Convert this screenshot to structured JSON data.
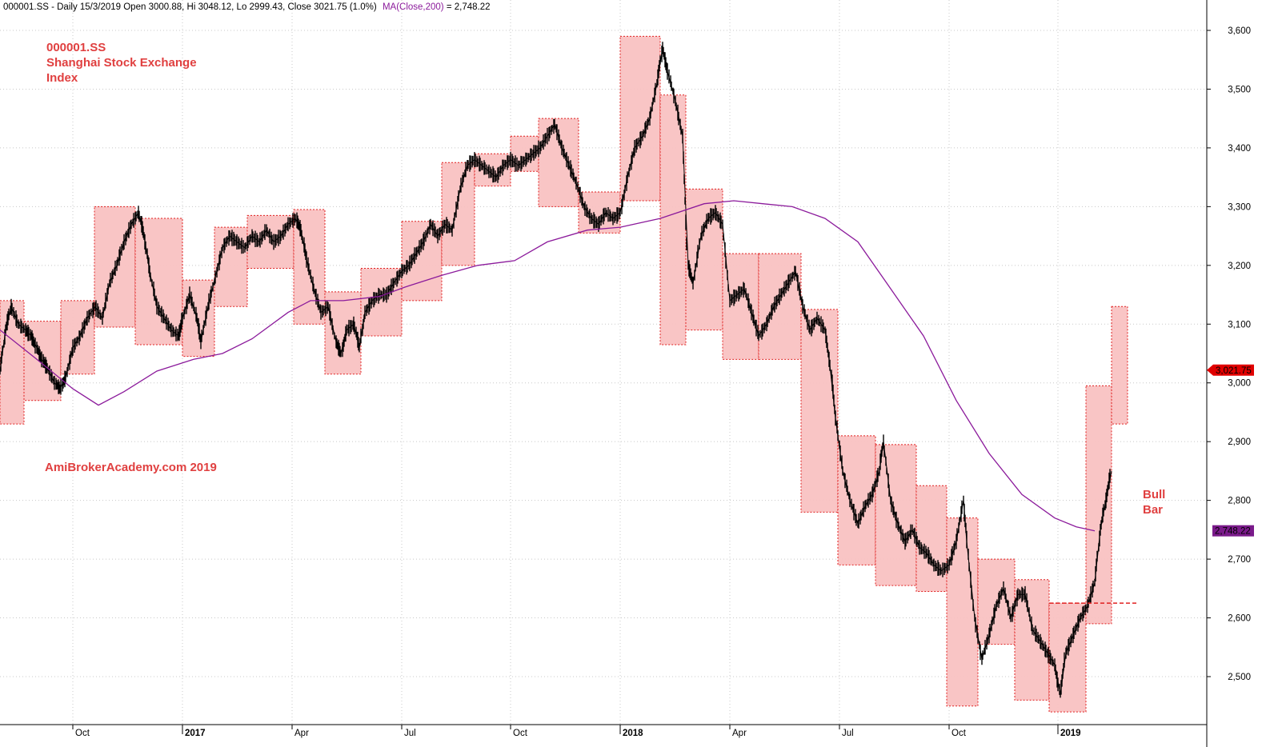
{
  "header": {
    "info": "000001.SS - Daily 15/3/2019 Open 3000.88, Hi 3048.12, Lo 2999.43, Close 3021.75 (1.0%)",
    "ma_label": "MA(Close,200)",
    "ma_value": " = 2,748.22"
  },
  "colors": {
    "box_fill": "#f9c2c2",
    "box_border": "#e02020",
    "price": "#000000",
    "ma": "#8b1a9b",
    "grid": "#c8c8c8",
    "annotation": "#e04040",
    "last_price_tag": "#e00000",
    "ma_tag": "#7a1a8a"
  },
  "annotations": {
    "title_line1": "000001.SS",
    "title_line2": "Shanghai Stock Exchange",
    "title_line3": "Index",
    "watermark": "AmiBrokerAcademy.com  2019",
    "bull_line1": "Bull",
    "bull_line2": "Bar"
  },
  "tags": {
    "last_price": "3,021.75",
    "ma": "2,748.22"
  },
  "chart_data": {
    "type": "line",
    "title": "000001.SS Shanghai Stock Exchange Index",
    "xlabel": "",
    "ylabel": "",
    "ylim": [
      2440,
      3630
    ],
    "xlim": [
      0,
      30.5
    ],
    "y_ticks": [
      2500,
      2600,
      2700,
      2800,
      2900,
      3000,
      3100,
      3200,
      3300,
      3400,
      3500,
      3600
    ],
    "y_tick_labels": [
      "2,500",
      "2,600",
      "2,700",
      "2,800",
      "2,900",
      "3,000",
      "3,100",
      "3,200",
      "3,300",
      "3,400",
      "3,500",
      "3,600"
    ],
    "x_ticks": [
      {
        "month": 2,
        "label": "Oct",
        "bold": false
      },
      {
        "month": 5,
        "label": "2017",
        "bold": true
      },
      {
        "month": 8,
        "label": "Apr",
        "bold": false
      },
      {
        "month": 11,
        "label": "Jul",
        "bold": false
      },
      {
        "month": 14,
        "label": "Oct",
        "bold": false
      },
      {
        "month": 17,
        "label": "2018",
        "bold": true
      },
      {
        "month": 20,
        "label": "Apr",
        "bold": false
      },
      {
        "month": 23,
        "label": "Jul",
        "bold": false
      },
      {
        "month": 26,
        "label": "Oct",
        "bold": false
      },
      {
        "month": 29,
        "label": "2019",
        "bold": true
      }
    ],
    "x_unit": "months since 2016-08-01",
    "grid": true,
    "series": [
      {
        "name": "000001.SS",
        "kind": "price",
        "points": [
          [
            0.0,
            3020
          ],
          [
            0.15,
            3090
          ],
          [
            0.3,
            3130
          ],
          [
            0.5,
            3100
          ],
          [
            0.7,
            3090
          ],
          [
            0.85,
            3080
          ],
          [
            1.0,
            3060
          ],
          [
            1.15,
            3040
          ],
          [
            1.3,
            3025
          ],
          [
            1.5,
            3000
          ],
          [
            1.65,
            2990
          ],
          [
            1.8,
            3010
          ],
          [
            2.0,
            3060
          ],
          [
            2.2,
            3080
          ],
          [
            2.4,
            3110
          ],
          [
            2.6,
            3130
          ],
          [
            2.8,
            3110
          ],
          [
            3.0,
            3170
          ],
          [
            3.2,
            3200
          ],
          [
            3.4,
            3240
          ],
          [
            3.6,
            3270
          ],
          [
            3.8,
            3290
          ],
          [
            3.95,
            3250
          ],
          [
            4.1,
            3190
          ],
          [
            4.3,
            3130
          ],
          [
            4.5,
            3110
          ],
          [
            4.7,
            3090
          ],
          [
            4.9,
            3080
          ],
          [
            5.0,
            3110
          ],
          [
            5.2,
            3150
          ],
          [
            5.4,
            3110
          ],
          [
            5.5,
            3070
          ],
          [
            5.7,
            3130
          ],
          [
            5.9,
            3180
          ],
          [
            6.1,
            3230
          ],
          [
            6.3,
            3250
          ],
          [
            6.5,
            3240
          ],
          [
            6.7,
            3230
          ],
          [
            6.9,
            3250
          ],
          [
            7.1,
            3240
          ],
          [
            7.3,
            3260
          ],
          [
            7.5,
            3240
          ],
          [
            7.7,
            3250
          ],
          [
            7.9,
            3270
          ],
          [
            8.1,
            3280
          ],
          [
            8.25,
            3260
          ],
          [
            8.4,
            3210
          ],
          [
            8.6,
            3160
          ],
          [
            8.8,
            3120
          ],
          [
            9.0,
            3130
          ],
          [
            9.2,
            3070
          ],
          [
            9.35,
            3050
          ],
          [
            9.5,
            3090
          ],
          [
            9.7,
            3100
          ],
          [
            9.85,
            3060
          ],
          [
            10.0,
            3120
          ],
          [
            10.2,
            3140
          ],
          [
            10.4,
            3150
          ],
          [
            10.6,
            3150
          ],
          [
            10.8,
            3170
          ],
          [
            11.0,
            3190
          ],
          [
            11.2,
            3200
          ],
          [
            11.4,
            3220
          ],
          [
            11.6,
            3240
          ],
          [
            11.8,
            3270
          ],
          [
            12.0,
            3250
          ],
          [
            12.2,
            3270
          ],
          [
            12.4,
            3260
          ],
          [
            12.6,
            3330
          ],
          [
            12.8,
            3370
          ],
          [
            13.0,
            3380
          ],
          [
            13.2,
            3370
          ],
          [
            13.4,
            3360
          ],
          [
            13.6,
            3350
          ],
          [
            13.8,
            3370
          ],
          [
            14.0,
            3380
          ],
          [
            14.2,
            3370
          ],
          [
            14.4,
            3380
          ],
          [
            14.6,
            3390
          ],
          [
            14.8,
            3400
          ],
          [
            15.0,
            3420
          ],
          [
            15.2,
            3440
          ],
          [
            15.4,
            3400
          ],
          [
            15.6,
            3370
          ],
          [
            15.8,
            3340
          ],
          [
            16.0,
            3300
          ],
          [
            16.2,
            3280
          ],
          [
            16.4,
            3270
          ],
          [
            16.6,
            3290
          ],
          [
            16.8,
            3280
          ],
          [
            17.0,
            3290
          ],
          [
            17.2,
            3350
          ],
          [
            17.4,
            3400
          ],
          [
            17.6,
            3420
          ],
          [
            17.8,
            3450
          ],
          [
            18.0,
            3510
          ],
          [
            18.15,
            3570
          ],
          [
            18.3,
            3530
          ],
          [
            18.5,
            3480
          ],
          [
            18.7,
            3420
          ],
          [
            18.85,
            3200
          ],
          [
            19.0,
            3170
          ],
          [
            19.2,
            3250
          ],
          [
            19.4,
            3280
          ],
          [
            19.6,
            3290
          ],
          [
            19.8,
            3270
          ],
          [
            20.0,
            3140
          ],
          [
            20.2,
            3150
          ],
          [
            20.4,
            3160
          ],
          [
            20.6,
            3120
          ],
          [
            20.8,
            3080
          ],
          [
            21.0,
            3100
          ],
          [
            21.2,
            3130
          ],
          [
            21.4,
            3150
          ],
          [
            21.6,
            3170
          ],
          [
            21.8,
            3190
          ],
          [
            22.0,
            3130
          ],
          [
            22.2,
            3090
          ],
          [
            22.4,
            3110
          ],
          [
            22.6,
            3090
          ],
          [
            22.75,
            3030
          ],
          [
            22.9,
            2940
          ],
          [
            23.1,
            2850
          ],
          [
            23.3,
            2800
          ],
          [
            23.5,
            2760
          ],
          [
            23.7,
            2790
          ],
          [
            23.9,
            2810
          ],
          [
            24.1,
            2850
          ],
          [
            24.2,
            2900
          ],
          [
            24.4,
            2800
          ],
          [
            24.6,
            2760
          ],
          [
            24.8,
            2730
          ],
          [
            25.0,
            2750
          ],
          [
            25.2,
            2720
          ],
          [
            25.4,
            2710
          ],
          [
            25.6,
            2690
          ],
          [
            25.8,
            2680
          ],
          [
            26.0,
            2690
          ],
          [
            26.2,
            2730
          ],
          [
            26.4,
            2800
          ],
          [
            26.5,
            2730
          ],
          [
            26.7,
            2600
          ],
          [
            26.9,
            2530
          ],
          [
            27.1,
            2570
          ],
          [
            27.3,
            2620
          ],
          [
            27.5,
            2650
          ],
          [
            27.7,
            2600
          ],
          [
            27.9,
            2640
          ],
          [
            28.1,
            2640
          ],
          [
            28.3,
            2580
          ],
          [
            28.5,
            2560
          ],
          [
            28.7,
            2540
          ],
          [
            28.9,
            2520
          ],
          [
            29.05,
            2470
          ],
          [
            29.2,
            2540
          ],
          [
            29.4,
            2570
          ],
          [
            29.6,
            2600
          ],
          [
            29.8,
            2620
          ],
          [
            30.0,
            2660
          ],
          [
            30.15,
            2750
          ],
          [
            30.3,
            2800
          ],
          [
            30.45,
            2850
          ]
        ]
      },
      {
        "name": "MA(Close,200)",
        "kind": "ma",
        "points": [
          [
            0.0,
            3090
          ],
          [
            1.0,
            3040
          ],
          [
            2.0,
            2990
          ],
          [
            2.7,
            2962
          ],
          [
            3.4,
            2985
          ],
          [
            4.3,
            3020
          ],
          [
            5.3,
            3040
          ],
          [
            6.1,
            3050
          ],
          [
            6.9,
            3075
          ],
          [
            7.9,
            3120
          ],
          [
            8.5,
            3140
          ],
          [
            9.4,
            3140
          ],
          [
            10.4,
            3147
          ],
          [
            11.1,
            3163
          ],
          [
            12.1,
            3183
          ],
          [
            13.1,
            3200
          ],
          [
            14.1,
            3208
          ],
          [
            15.0,
            3240
          ],
          [
            16.1,
            3260
          ],
          [
            17.0,
            3265
          ],
          [
            18.1,
            3280
          ],
          [
            19.3,
            3305
          ],
          [
            20.1,
            3310
          ],
          [
            20.9,
            3305
          ],
          [
            21.7,
            3300
          ],
          [
            22.6,
            3280
          ],
          [
            23.5,
            3240
          ],
          [
            24.3,
            3170
          ],
          [
            25.3,
            3080
          ],
          [
            26.2,
            2970
          ],
          [
            27.1,
            2880
          ],
          [
            28.0,
            2810
          ],
          [
            28.9,
            2770
          ],
          [
            29.5,
            2755
          ],
          [
            30.0,
            2748
          ]
        ]
      }
    ],
    "boxes": [
      {
        "x0": 0.0,
        "x1": 0.66,
        "high": 3140,
        "low": 2930
      },
      {
        "x0": 0.66,
        "x1": 1.67,
        "high": 3105,
        "low": 2970
      },
      {
        "x0": 1.67,
        "x1": 2.58,
        "high": 3140,
        "low": 3015
      },
      {
        "x0": 2.58,
        "x1": 3.7,
        "high": 3300,
        "low": 3095
      },
      {
        "x0": 3.7,
        "x1": 5.0,
        "high": 3280,
        "low": 3065
      },
      {
        "x0": 5.0,
        "x1": 5.87,
        "high": 3175,
        "low": 3045
      },
      {
        "x0": 5.87,
        "x1": 6.78,
        "high": 3265,
        "low": 3130
      },
      {
        "x0": 6.78,
        "x1": 8.04,
        "high": 3285,
        "low": 3195
      },
      {
        "x0": 8.04,
        "x1": 8.9,
        "high": 3295,
        "low": 3100
      },
      {
        "x0": 8.9,
        "x1": 9.9,
        "high": 3155,
        "low": 3015
      },
      {
        "x0": 9.9,
        "x1": 11.0,
        "high": 3195,
        "low": 3080
      },
      {
        "x0": 11.0,
        "x1": 12.1,
        "high": 3275,
        "low": 3140
      },
      {
        "x0": 12.1,
        "x1": 13.0,
        "high": 3375,
        "low": 3200
      },
      {
        "x0": 13.0,
        "x1": 14.0,
        "high": 3390,
        "low": 3335
      },
      {
        "x0": 14.0,
        "x1": 14.75,
        "high": 3420,
        "low": 3360
      },
      {
        "x0": 14.75,
        "x1": 15.85,
        "high": 3450,
        "low": 3300
      },
      {
        "x0": 15.85,
        "x1": 17.0,
        "high": 3325,
        "low": 3255
      },
      {
        "x0": 17.0,
        "x1": 18.1,
        "high": 3590,
        "low": 3310
      },
      {
        "x0": 18.1,
        "x1": 18.8,
        "high": 3490,
        "low": 3065
      },
      {
        "x0": 18.8,
        "x1": 19.8,
        "high": 3330,
        "low": 3090
      },
      {
        "x0": 19.8,
        "x1": 20.8,
        "high": 3220,
        "low": 3040
      },
      {
        "x0": 20.8,
        "x1": 21.95,
        "high": 3220,
        "low": 3040
      },
      {
        "x0": 21.95,
        "x1": 22.95,
        "high": 3125,
        "low": 2780
      },
      {
        "x0": 22.95,
        "x1": 24.0,
        "high": 2910,
        "low": 2690
      },
      {
        "x0": 24.0,
        "x1": 25.1,
        "high": 2895,
        "low": 2655
      },
      {
        "x0": 25.1,
        "x1": 25.95,
        "high": 2825,
        "low": 2645
      },
      {
        "x0": 25.95,
        "x1": 26.8,
        "high": 2770,
        "low": 2450
      },
      {
        "x0": 26.8,
        "x1": 27.8,
        "high": 2700,
        "low": 2555
      },
      {
        "x0": 27.8,
        "x1": 28.75,
        "high": 2665,
        "low": 2460
      },
      {
        "x0": 28.75,
        "x1": 29.75,
        "high": 2625,
        "low": 2440
      },
      {
        "x0": 29.75,
        "x1": 30.45,
        "high": 2995,
        "low": 2590
      },
      {
        "x0": 30.45,
        "x1": 30.9,
        "high": 3130,
        "low": 2930
      }
    ],
    "reference_line": {
      "x0": 28.75,
      "x1": 31.2,
      "y": 2625,
      "label": ""
    }
  }
}
